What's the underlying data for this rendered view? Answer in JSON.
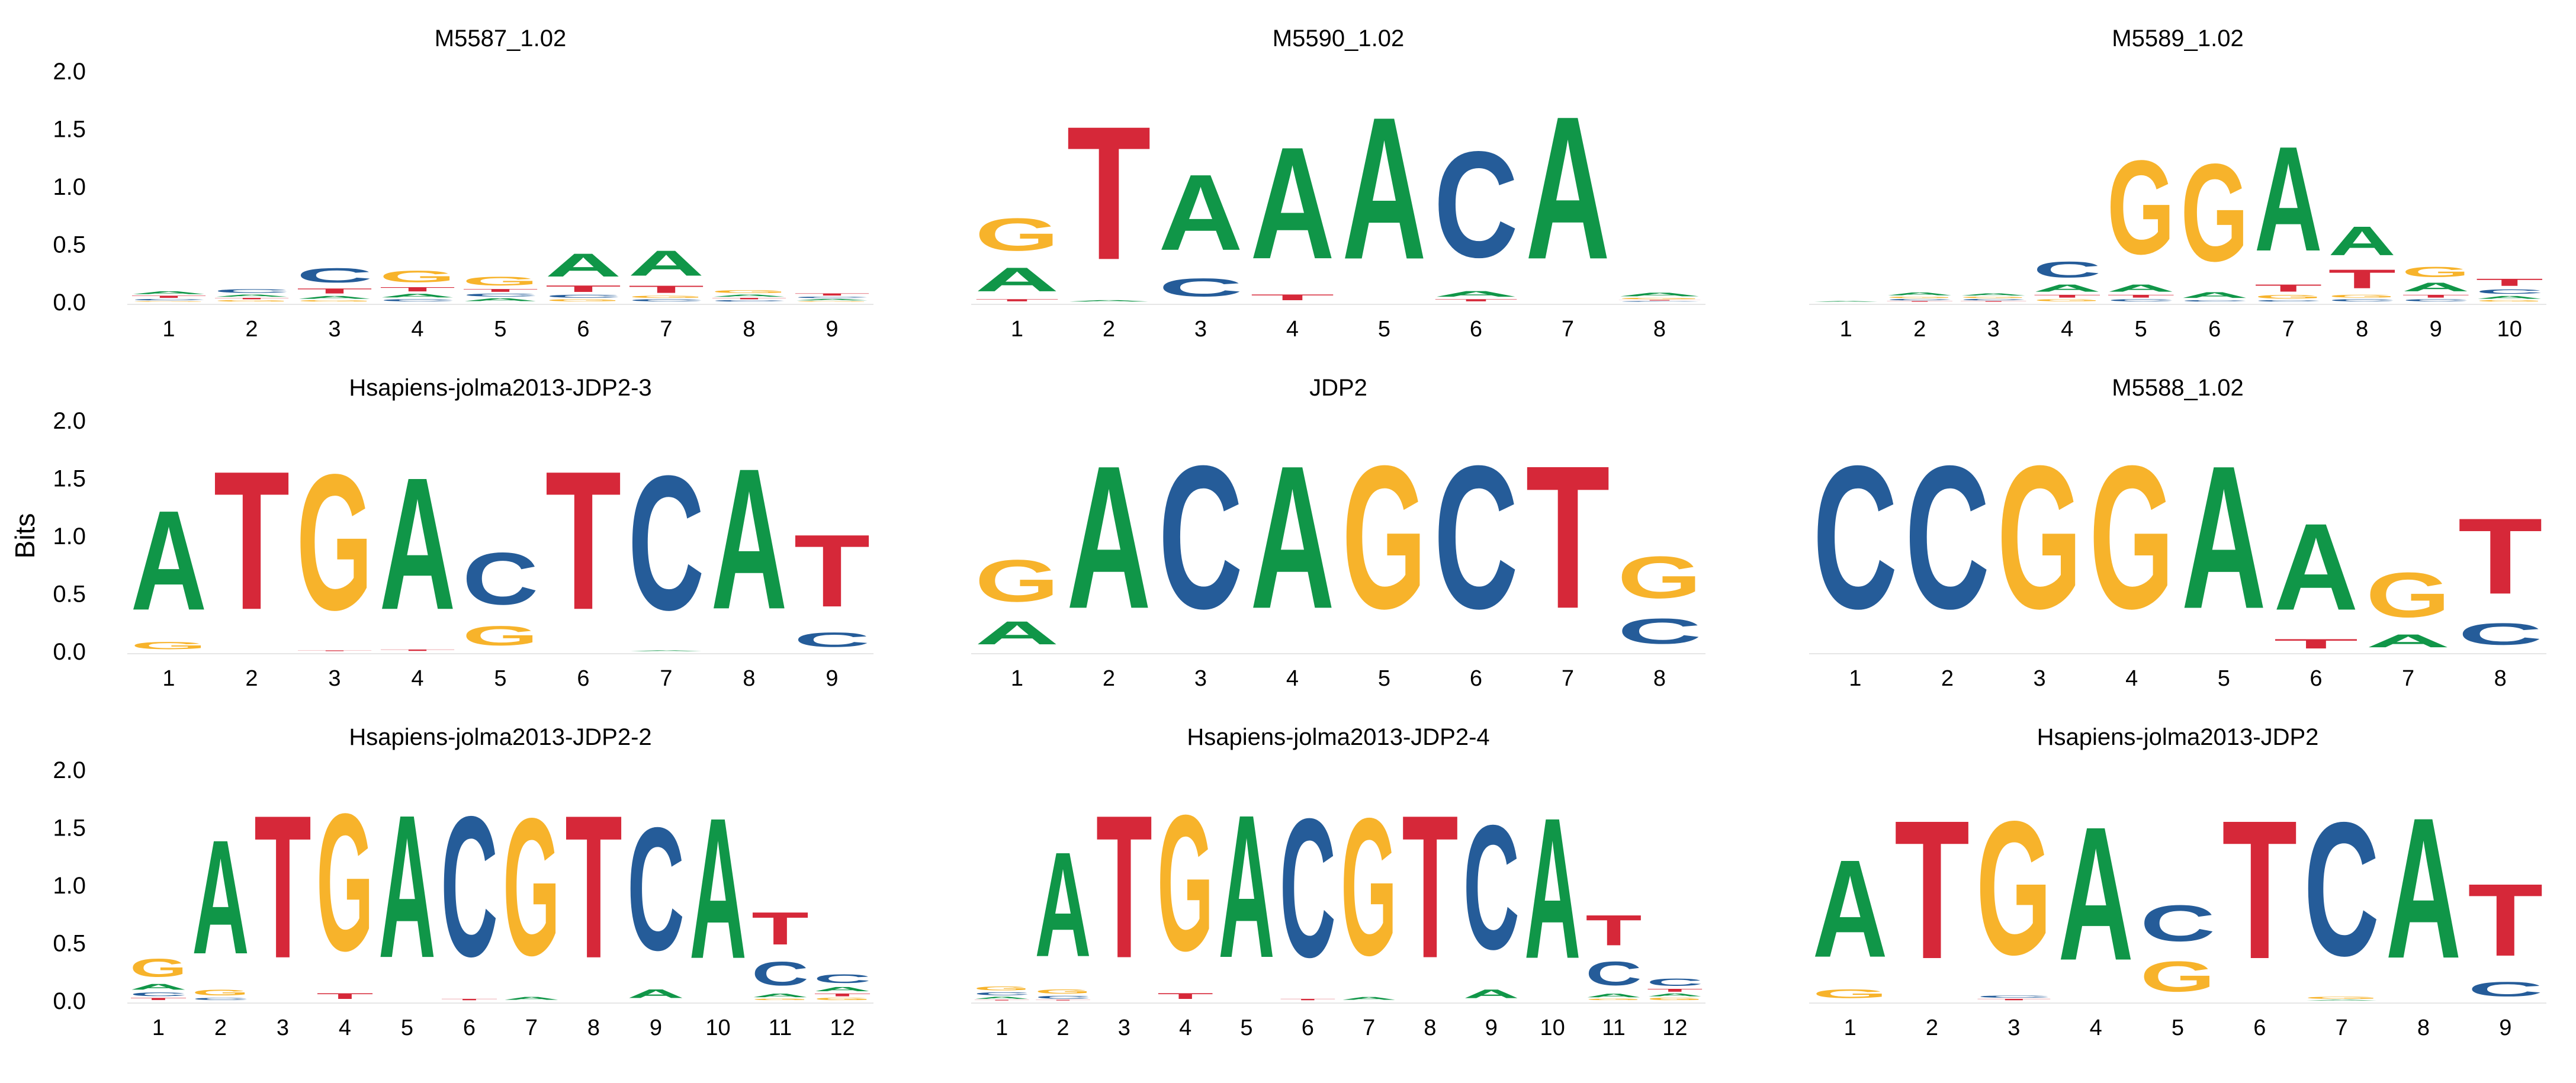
{
  "colors": {
    "A": "#109648",
    "C": "#255C99",
    "G": "#F7B32B",
    "T": "#D62839"
  },
  "ylabel": "Bits",
  "chart_data": [
    {
      "type": "sequence-logo",
      "title": "M5587_1.02",
      "ylabel": "Bits",
      "ylim": [
        0,
        2
      ],
      "yticks": [
        "0.0",
        "0.5",
        "1.0",
        "1.5",
        "2.0"
      ],
      "positions": [
        "1",
        "2",
        "3",
        "4",
        "5",
        "6",
        "7",
        "8",
        "9"
      ],
      "columns": [
        {
          "A": 0.04,
          "C": 0.02,
          "G": 0.01,
          "T": 0.03
        },
        {
          "A": 0.03,
          "C": 0.05,
          "G": 0.02,
          "T": 0.02
        },
        {
          "A": 0.04,
          "C": 0.2,
          "G": 0.02,
          "T": 0.07
        },
        {
          "A": 0.05,
          "C": 0.03,
          "G": 0.16,
          "T": 0.06
        },
        {
          "A": 0.04,
          "C": 0.04,
          "G": 0.12,
          "T": 0.04
        },
        {
          "A": 0.32,
          "C": 0.04,
          "G": 0.03,
          "T": 0.09
        },
        {
          "A": 0.35,
          "C": 0.03,
          "G": 0.03,
          "T": 0.1
        },
        {
          "A": 0.03,
          "C": 0.02,
          "G": 0.04,
          "T": 0.02
        },
        {
          "A": 0.02,
          "C": 0.02,
          "G": 0.01,
          "T": 0.03
        }
      ]
    },
    {
      "type": "sequence-logo",
      "title": "M5590_1.02",
      "ylabel": "Bits",
      "ylim": [
        0,
        2
      ],
      "yticks": [
        "0.0",
        "0.5",
        "1.0",
        "1.5",
        "2.0"
      ],
      "positions": [
        "1",
        "2",
        "3",
        "4",
        "5",
        "6",
        "7",
        "8"
      ],
      "columns": [
        {
          "A": 0.33,
          "C": 0,
          "G": 0.45,
          "T": 0.03
        },
        {
          "A": 0.02,
          "C": 0,
          "G": 0,
          "T": 1.85
        },
        {
          "A": 1.05,
          "C": 0.25,
          "G": 0,
          "T": 0
        },
        {
          "A": 1.55,
          "C": 0,
          "G": 0,
          "T": 0.08
        },
        {
          "A": 1.97,
          "C": 0,
          "G": 0,
          "T": 0
        },
        {
          "A": 0.08,
          "C": 1.47,
          "G": 0,
          "T": 0.03
        },
        {
          "A": 1.98,
          "C": 0,
          "G": 0,
          "T": 0
        },
        {
          "A": 0.05,
          "C": 0.01,
          "G": 0.02,
          "T": 0.01
        }
      ]
    },
    {
      "type": "sequence-logo",
      "title": "M5589_1.02",
      "ylabel": "Bits",
      "ylim": [
        0,
        2
      ],
      "yticks": [
        "0.0",
        "0.5",
        "1.0",
        "1.5",
        "2.0"
      ],
      "positions": [
        "1",
        "2",
        "3",
        "4",
        "5",
        "6",
        "7",
        "8",
        "9",
        "10"
      ],
      "columns": [
        {
          "A": 0.01,
          "C": 0,
          "G": 0,
          "T": 0
        },
        {
          "A": 0.04,
          "C": 0.02,
          "G": 0.02,
          "T": 0.01
        },
        {
          "A": 0.03,
          "C": 0.02,
          "G": 0.02,
          "T": 0.01
        },
        {
          "A": 0.1,
          "C": 0.22,
          "G": 0.03,
          "T": 0.04
        },
        {
          "A": 0.1,
          "C": 0.03,
          "G": 1.3,
          "T": 0.04
        },
        {
          "A": 0.08,
          "C": 0.02,
          "G": 1.35,
          "T": 0
        },
        {
          "A": 1.45,
          "C": 0.02,
          "G": 0.05,
          "T": 0.1
        },
        {
          "A": 0.4,
          "C": 0.03,
          "G": 0.04,
          "T": 0.26
        },
        {
          "A": 0.12,
          "C": 0.03,
          "G": 0.14,
          "T": 0.04
        },
        {
          "A": 0.04,
          "C": 0.06,
          "G": 0.02,
          "T": 0.1
        }
      ]
    },
    {
      "type": "sequence-logo",
      "title": "Hsapiens-jolma2013-JDP2-3",
      "ylabel": "Bits",
      "ylim": [
        0,
        2
      ],
      "yticks": [
        "0.0",
        "0.5",
        "1.0",
        "1.5",
        "2.0"
      ],
      "positions": [
        "1",
        "2",
        "3",
        "4",
        "5",
        "6",
        "7",
        "8",
        "9"
      ],
      "columns": [
        {
          "A": 1.38,
          "C": 0,
          "G": 0.1,
          "T": 0
        },
        {
          "A": 0,
          "C": 0,
          "G": 0,
          "T": 1.92
        },
        {
          "A": 0,
          "C": 0,
          "G": 1.88,
          "T": 0.01
        },
        {
          "A": 1.83,
          "C": 0,
          "G": 0,
          "T": 0.02
        },
        {
          "A": 0,
          "C": 0.72,
          "G": 0.27,
          "T": 0
        },
        {
          "A": 0,
          "C": 0,
          "G": 0,
          "T": 1.92
        },
        {
          "A": 0.01,
          "C": 1.86,
          "G": 0,
          "T": 0
        },
        {
          "A": 1.95,
          "C": 0,
          "G": 0,
          "T": 0
        },
        {
          "A": 0,
          "C": 0.2,
          "G": 0,
          "T": 1.0
        }
      ]
    },
    {
      "type": "sequence-logo",
      "title": "JDP2",
      "ylabel": "Bits",
      "ylim": [
        0,
        2
      ],
      "yticks": [
        "0.0",
        "0.5",
        "1.0",
        "1.5",
        "2.0"
      ],
      "positions": [
        "1",
        "2",
        "3",
        "4",
        "5",
        "6",
        "7",
        "8"
      ],
      "columns": [
        {
          "A": 0.32,
          "C": 0,
          "G": 0.58,
          "T": 0
        },
        {
          "A": 1.98,
          "C": 0,
          "G": 0,
          "T": 0
        },
        {
          "A": 0,
          "C": 1.98,
          "G": 0,
          "T": 0
        },
        {
          "A": 1.98,
          "C": 0,
          "G": 0,
          "T": 0
        },
        {
          "A": 0,
          "C": 0,
          "G": 1.98,
          "T": 0
        },
        {
          "A": 0,
          "C": 1.98,
          "G": 0,
          "T": 0
        },
        {
          "A": 0,
          "C": 0,
          "G": 0,
          "T": 1.98
        },
        {
          "A": 0,
          "C": 0.35,
          "G": 0.58,
          "T": 0
        }
      ]
    },
    {
      "type": "sequence-logo",
      "title": "M5588_1.02",
      "ylabel": "Bits",
      "ylim": [
        0,
        2
      ],
      "yticks": [
        "0.0",
        "0.5",
        "1.0",
        "1.5",
        "2.0"
      ],
      "positions": [
        "1",
        "2",
        "3",
        "4",
        "5",
        "6",
        "7",
        "8"
      ],
      "columns": [
        {
          "A": 0,
          "C": 1.98,
          "G": 0,
          "T": 0
        },
        {
          "A": 0,
          "C": 1.98,
          "G": 0,
          "T": 0
        },
        {
          "A": 0,
          "C": 0,
          "G": 1.98,
          "T": 0
        },
        {
          "A": 0,
          "C": 0,
          "G": 1.98,
          "T": 0
        },
        {
          "A": 1.98,
          "C": 0,
          "G": 0,
          "T": 0
        },
        {
          "A": 1.2,
          "C": 0,
          "G": 0,
          "T": 0.13
        },
        {
          "A": 0.18,
          "C": 0,
          "G": 0.62,
          "T": 0
        },
        {
          "A": 0,
          "C": 0.3,
          "G": 0,
          "T": 1.05
        }
      ]
    },
    {
      "type": "sequence-logo",
      "title": "Hsapiens-jolma2013-JDP2-2",
      "ylabel": "Bits",
      "ylim": [
        0,
        2
      ],
      "yticks": [
        "0.0",
        "0.5",
        "1.0",
        "1.5",
        "2.0"
      ],
      "positions": [
        "1",
        "2",
        "3",
        "4",
        "5",
        "6",
        "7",
        "8",
        "9",
        "10",
        "11",
        "12"
      ],
      "columns": [
        {
          "A": 0.08,
          "C": 0.05,
          "G": 0.25,
          "T": 0.03
        },
        {
          "A": 1.58,
          "C": 0.03,
          "G": 0.08,
          "T": 0
        },
        {
          "A": 0,
          "C": 0,
          "G": 0,
          "T": 1.98
        },
        {
          "A": 0,
          "C": 0,
          "G": 1.9,
          "T": 0.08
        },
        {
          "A": 1.98,
          "C": 0,
          "G": 0,
          "T": 0
        },
        {
          "A": 0,
          "C": 1.94,
          "G": 0,
          "T": 0.02
        },
        {
          "A": 0.04,
          "C": 0,
          "G": 1.9,
          "T": 0
        },
        {
          "A": 0,
          "C": 0,
          "G": 0,
          "T": 1.98
        },
        {
          "A": 0.12,
          "C": 1.7,
          "G": 0,
          "T": 0
        },
        {
          "A": 1.95,
          "C": 0,
          "G": 0,
          "T": 0
        },
        {
          "A": 0.05,
          "C": 0.33,
          "G": 0.02,
          "T": 0.45
        },
        {
          "A": 0.06,
          "C": 0.12,
          "G": 0.03,
          "T": 0.04
        }
      ]
    },
    {
      "type": "sequence-logo",
      "title": "Hsapiens-jolma2013-JDP2-4",
      "ylabel": "Bits",
      "ylim": [
        0,
        2
      ],
      "yticks": [
        "0.0",
        "0.5",
        "1.0",
        "1.5",
        "2.0"
      ],
      "positions": [
        "1",
        "2",
        "3",
        "4",
        "5",
        "6",
        "7",
        "8",
        "9",
        "10",
        "11",
        "12"
      ],
      "columns": [
        {
          "A": 0.03,
          "C": 0.04,
          "G": 0.05,
          "T": 0.01
        },
        {
          "A": 1.45,
          "C": 0.04,
          "G": 0.06,
          "T": 0.01
        },
        {
          "A": 0,
          "C": 0,
          "G": 0,
          "T": 1.98
        },
        {
          "A": 0,
          "C": 0,
          "G": 1.88,
          "T": 0.08
        },
        {
          "A": 1.98,
          "C": 0,
          "G": 0,
          "T": 0
        },
        {
          "A": 0,
          "C": 1.92,
          "G": 0,
          "T": 0.02
        },
        {
          "A": 0.04,
          "C": 0,
          "G": 1.9,
          "T": 0
        },
        {
          "A": 0,
          "C": 0,
          "G": 0,
          "T": 1.98
        },
        {
          "A": 0.12,
          "C": 1.72,
          "G": 0,
          "T": 0
        },
        {
          "A": 1.95,
          "C": 0,
          "G": 0,
          "T": 0
        },
        {
          "A": 0.05,
          "C": 0.33,
          "G": 0.02,
          "T": 0.42
        },
        {
          "A": 0.04,
          "C": 0.1,
          "G": 0.03,
          "T": 0.04
        }
      ]
    },
    {
      "type": "sequence-logo",
      "title": "Hsapiens-jolma2013-JDP2",
      "ylabel": "Bits",
      "ylim": [
        0,
        2
      ],
      "yticks": [
        "0.0",
        "0.5",
        "1.0",
        "1.5",
        "2.0"
      ],
      "positions": [
        "1",
        "2",
        "3",
        "4",
        "5",
        "6",
        "7",
        "8",
        "9"
      ],
      "columns": [
        {
          "A": 1.35,
          "C": 0,
          "G": 0.12,
          "T": 0
        },
        {
          "A": 0,
          "C": 0,
          "G": 0,
          "T": 1.92
        },
        {
          "A": 0,
          "C": 0.03,
          "G": 1.85,
          "T": 0.02
        },
        {
          "A": 1.85,
          "C": 0,
          "G": 0,
          "T": 0
        },
        {
          "A": 0,
          "C": 0.5,
          "G": 0.42,
          "T": 0
        },
        {
          "A": 0,
          "C": 0,
          "G": 0,
          "T": 1.92
        },
        {
          "A": 0.01,
          "C": 1.85,
          "G": 0.03,
          "T": 0
        },
        {
          "A": 1.95,
          "C": 0,
          "G": 0,
          "T": 0
        },
        {
          "A": 0,
          "C": 0.2,
          "G": 0,
          "T": 1.0
        }
      ]
    }
  ]
}
